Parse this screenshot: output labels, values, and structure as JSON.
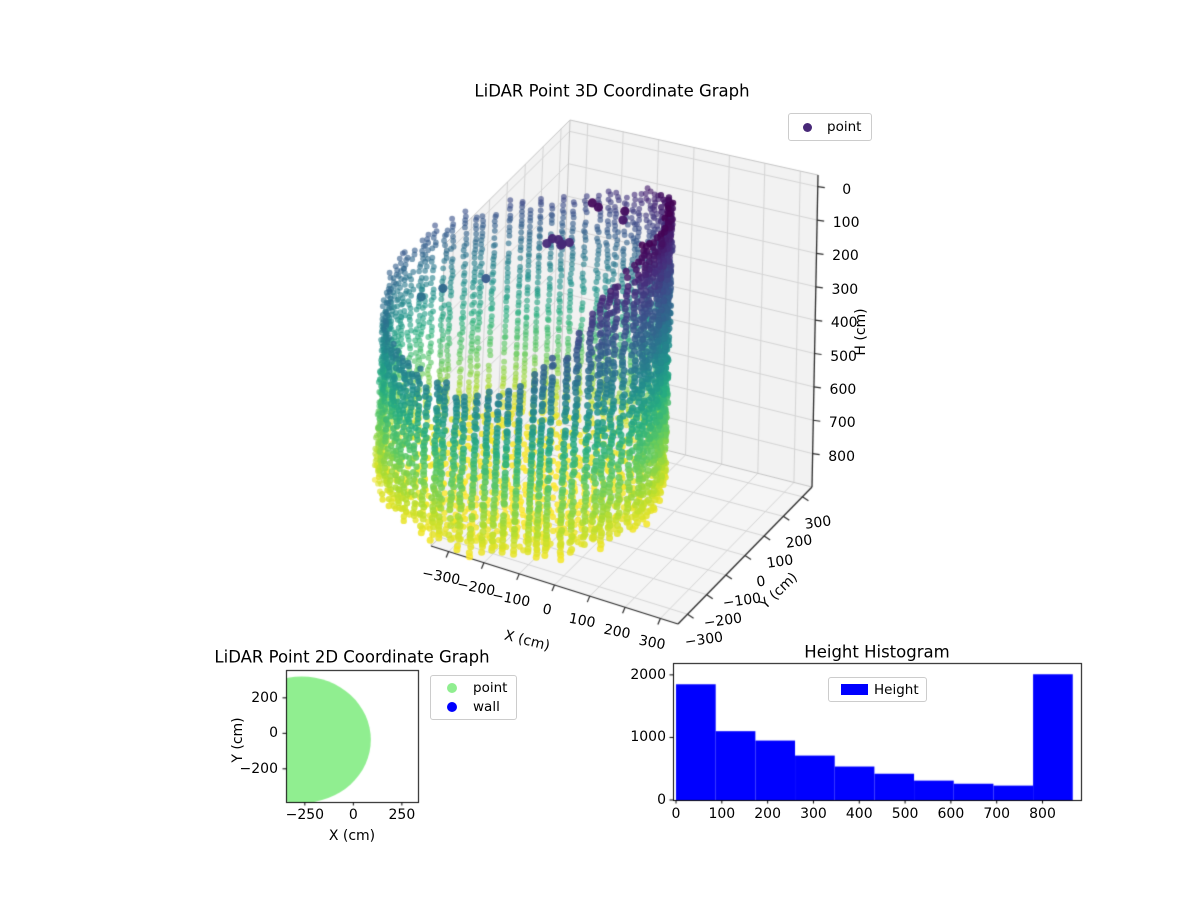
{
  "page": {
    "background": "#ffffff"
  },
  "chart_data": [
    {
      "id": "lidar_3d",
      "type": "scatter3d",
      "title": "LiDAR Point 3D Coordinate Graph",
      "xlabel": "X (cm)",
      "ylabel": "Y (cm)",
      "zlabel": "H (cm)",
      "legend": {
        "entries": [
          {
            "label": "point",
            "color": "#482878"
          }
        ],
        "location": "upper right"
      },
      "xlim": [
        -350,
        350
      ],
      "ylim": [
        -350,
        350
      ],
      "hlim": [
        -35,
        900
      ],
      "h_axis_inverted": true,
      "grid": true,
      "xticks": [
        -300,
        -200,
        -100,
        0,
        100,
        200,
        300
      ],
      "yticks": [
        -300,
        -200,
        -100,
        0,
        100,
        200,
        300
      ],
      "hticks": [
        0,
        100,
        200,
        300,
        400,
        500,
        600,
        700,
        800
      ],
      "colormap": "viridis",
      "colormap_stops": [
        [
          0,
          "#440154"
        ],
        [
          0.12,
          "#472d7b"
        ],
        [
          0.25,
          "#3b528b"
        ],
        [
          0.38,
          "#2c728e"
        ],
        [
          0.5,
          "#21918c"
        ],
        [
          0.62,
          "#28ae80"
        ],
        [
          0.75,
          "#5ec962"
        ],
        [
          0.88,
          "#addc30"
        ],
        [
          1,
          "#fde725"
        ]
      ],
      "point_cloud": {
        "wall_circle": {
          "center_x": -266,
          "center_y": -36,
          "radius": 356
        },
        "columns": 78,
        "h_step": 13,
        "h_bottom": 848,
        "rim_top_profile_deg_h": [
          [
            -180,
            260
          ],
          [
            -155,
            315
          ],
          [
            -120,
            372
          ],
          [
            -90,
            382
          ],
          [
            -65,
            340
          ],
          [
            -45,
            230
          ],
          [
            -30,
            95
          ],
          [
            -15,
            20
          ],
          [
            0,
            0
          ],
          [
            25,
            0
          ],
          [
            45,
            30
          ],
          [
            60,
            80
          ],
          [
            80,
            140
          ],
          [
            100,
            190
          ],
          [
            120,
            210
          ],
          [
            150,
            225
          ],
          [
            180,
            260
          ]
        ],
        "floor": {
          "h_center": 876,
          "h_edge_drop": 42,
          "ring_step": 24
        },
        "stray_points": [
          [
            -190,
            -20,
            90
          ],
          [
            -175,
            -28,
            95
          ],
          [
            -205,
            -25,
            88
          ],
          [
            -190,
            -5,
            115
          ],
          [
            -160,
            -18,
            92
          ],
          [
            -215,
            -35,
            100
          ],
          [
            -60,
            90,
            30
          ],
          [
            -62,
            85,
            55
          ],
          [
            -130,
            80,
            30
          ],
          [
            -150,
            85,
            25
          ],
          [
            -380,
            -40,
            250
          ],
          [
            -490,
            -60,
            300
          ],
          [
            -540,
            -80,
            330
          ]
        ]
      }
    },
    {
      "id": "lidar_2d",
      "type": "scatter",
      "title": "LiDAR Point 2D Coordinate Graph",
      "xlabel": "X (cm)",
      "ylabel": "Y (cm)",
      "legend": {
        "entries": [
          {
            "label": "point",
            "color": "#90ee90"
          },
          {
            "label": "wall",
            "color": "#0000ff"
          }
        ],
        "location": "upper right outside"
      },
      "xlim": [
        -347,
        333
      ],
      "ylim": [
        -387,
        357
      ],
      "xticks": [
        -250,
        0,
        250
      ],
      "yticks": [
        -200,
        0,
        200
      ],
      "disc": {
        "center_x": -266,
        "center_y": -36,
        "radius": 356,
        "color": "#90ee90"
      }
    },
    {
      "id": "height_histogram",
      "type": "bar",
      "title": "Height Histogram",
      "legend": {
        "entries": [
          {
            "label": "Height",
            "color": "#0000ff"
          }
        ],
        "location": "upper center"
      },
      "bar_color": "#0000ff",
      "bins_start": 0,
      "bin_width": 86.6,
      "values": [
        1850,
        1100,
        950,
        710,
        535,
        420,
        310,
        260,
        230,
        2010
      ],
      "xticks": [
        0,
        100,
        200,
        300,
        400,
        500,
        600,
        700,
        800
      ],
      "yticks": [
        0,
        1000,
        2000
      ],
      "xlim": [
        -6.6,
        884
      ],
      "ylim": [
        0,
        2190
      ]
    }
  ]
}
